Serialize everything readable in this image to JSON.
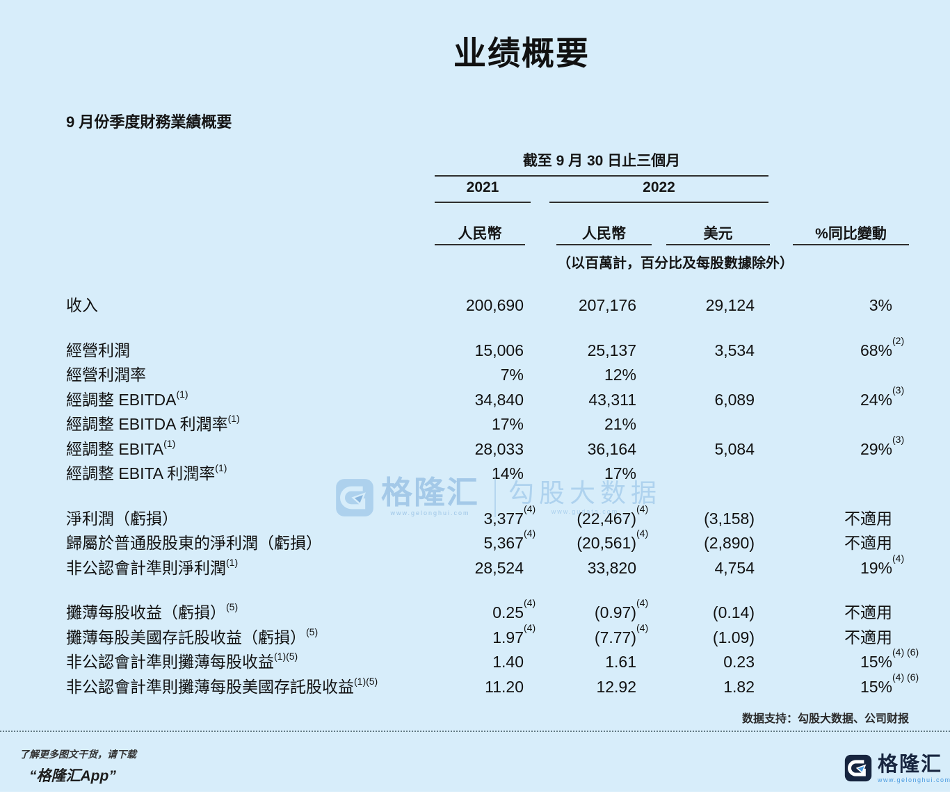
{
  "page": {
    "title": "业绩概要",
    "section_title": "9 月份季度財務業績概要"
  },
  "table": {
    "period_header": "截至 9 月 30 日止三個月",
    "year_2021": "2021",
    "year_2022": "2022",
    "col_headers": [
      "人民幣",
      "人民幣",
      "美元",
      "%同比變動"
    ],
    "unit_note": "（以百萬計，百分比及每股數據除外）",
    "rows": [
      {
        "gap_before": false,
        "label": {
          "t": "收入",
          "s": ""
        },
        "rmb2021": {
          "t": "200,690",
          "s": ""
        },
        "rmb2022": {
          "t": "207,176",
          "s": ""
        },
        "usd": {
          "t": "29,124",
          "s": ""
        },
        "yoy": {
          "t": "3%",
          "s": ""
        }
      },
      {
        "gap_before": true,
        "label": {
          "t": "經營利潤",
          "s": ""
        },
        "rmb2021": {
          "t": "15,006",
          "s": ""
        },
        "rmb2022": {
          "t": "25,137",
          "s": ""
        },
        "usd": {
          "t": "3,534",
          "s": ""
        },
        "yoy": {
          "t": "68%",
          "s": "(2)"
        }
      },
      {
        "gap_before": false,
        "label": {
          "t": "經營利潤率",
          "s": ""
        },
        "rmb2021": {
          "t": "7%",
          "s": ""
        },
        "rmb2022": {
          "t": "12%",
          "s": ""
        },
        "usd": {
          "t": "",
          "s": ""
        },
        "yoy": {
          "t": "",
          "s": ""
        }
      },
      {
        "gap_before": false,
        "label": {
          "t": "經調整 EBITDA",
          "s": "(1)"
        },
        "rmb2021": {
          "t": "34,840",
          "s": ""
        },
        "rmb2022": {
          "t": "43,311",
          "s": ""
        },
        "usd": {
          "t": "6,089",
          "s": ""
        },
        "yoy": {
          "t": "24%",
          "s": "(3)"
        }
      },
      {
        "gap_before": false,
        "label": {
          "t": "經調整 EBITDA 利潤率",
          "s": "(1)"
        },
        "rmb2021": {
          "t": "17%",
          "s": ""
        },
        "rmb2022": {
          "t": "21%",
          "s": ""
        },
        "usd": {
          "t": "",
          "s": ""
        },
        "yoy": {
          "t": "",
          "s": ""
        }
      },
      {
        "gap_before": false,
        "label": {
          "t": "經調整 EBITA",
          "s": "(1)"
        },
        "rmb2021": {
          "t": "28,033",
          "s": ""
        },
        "rmb2022": {
          "t": "36,164",
          "s": ""
        },
        "usd": {
          "t": "5,084",
          "s": ""
        },
        "yoy": {
          "t": "29%",
          "s": "(3)"
        }
      },
      {
        "gap_before": false,
        "label": {
          "t": "經調整 EBITA 利潤率",
          "s": "(1)"
        },
        "rmb2021": {
          "t": "14%",
          "s": ""
        },
        "rmb2022": {
          "t": "17%",
          "s": ""
        },
        "usd": {
          "t": "",
          "s": ""
        },
        "yoy": {
          "t": "",
          "s": ""
        }
      },
      {
        "gap_before": true,
        "label": {
          "t": "淨利潤（虧損）",
          "s": ""
        },
        "rmb2021": {
          "t": "3,377",
          "s": "(4)"
        },
        "rmb2022": {
          "t": "(22,467)",
          "s": "(4)"
        },
        "usd": {
          "t": "(3,158)",
          "s": ""
        },
        "yoy": {
          "t": "不適用",
          "s": ""
        }
      },
      {
        "gap_before": false,
        "label": {
          "t": "歸屬於普通股股東的淨利潤（虧損）",
          "s": ""
        },
        "rmb2021": {
          "t": "5,367",
          "s": "(4)"
        },
        "rmb2022": {
          "t": "(20,561)",
          "s": "(4)"
        },
        "usd": {
          "t": "(2,890)",
          "s": ""
        },
        "yoy": {
          "t": "不適用",
          "s": ""
        }
      },
      {
        "gap_before": false,
        "label": {
          "t": "非公認會計準則淨利潤",
          "s": "(1)"
        },
        "rmb2021": {
          "t": "28,524",
          "s": ""
        },
        "rmb2022": {
          "t": "33,820",
          "s": ""
        },
        "usd": {
          "t": "4,754",
          "s": ""
        },
        "yoy": {
          "t": "19%",
          "s": "(4)"
        }
      },
      {
        "gap_before": true,
        "label": {
          "t": "攤薄每股收益（虧損）",
          "s": "(5)"
        },
        "rmb2021": {
          "t": "0.25",
          "s": "(4)"
        },
        "rmb2022": {
          "t": "(0.97)",
          "s": "(4)"
        },
        "usd": {
          "t": "(0.14)",
          "s": ""
        },
        "yoy": {
          "t": "不適用",
          "s": ""
        }
      },
      {
        "gap_before": false,
        "label": {
          "t": "攤薄每股美國存託股收益（虧損）",
          "s": "(5)"
        },
        "rmb2021": {
          "t": "1.97",
          "s": "(4)"
        },
        "rmb2022": {
          "t": "(7.77)",
          "s": "(4)"
        },
        "usd": {
          "t": "(1.09)",
          "s": ""
        },
        "yoy": {
          "t": "不適用",
          "s": ""
        }
      },
      {
        "gap_before": false,
        "label": {
          "t": "非公認會計準則攤薄每股收益",
          "s": "(1)(5)"
        },
        "rmb2021": {
          "t": "1.40",
          "s": ""
        },
        "rmb2022": {
          "t": "1.61",
          "s": ""
        },
        "usd": {
          "t": "0.23",
          "s": ""
        },
        "yoy": {
          "t": "15%",
          "s": "(4) (6)"
        }
      },
      {
        "gap_before": false,
        "label": {
          "t": "非公認會計準則攤薄每股美國存託股收益",
          "s": "(1)(5)"
        },
        "rmb2021": {
          "t": "11.20",
          "s": ""
        },
        "rmb2022": {
          "t": "12.92",
          "s": ""
        },
        "usd": {
          "t": "1.82",
          "s": ""
        },
        "yoy": {
          "t": "15%",
          "s": "(4) (6)"
        }
      }
    ]
  },
  "watermark": {
    "brand": "格隆汇",
    "brand_url": "www.gelonghui.com",
    "partner": "勾股大数据",
    "partner_url": "www.gudata.com"
  },
  "footer": {
    "source": "数据支持：勾股大数据、公司财报",
    "promo_line1": "了解更多图文干货，请下载",
    "promo_line2": "“格隆汇App”",
    "brand_name": "格隆汇",
    "brand_url": "www.gelonghui.com"
  },
  "colors": {
    "background": "#d7edfa",
    "text": "#151515",
    "brand_navy": "#17253f",
    "brand_blue": "#4a9be0",
    "watermark_blue": "#a9cde8"
  }
}
